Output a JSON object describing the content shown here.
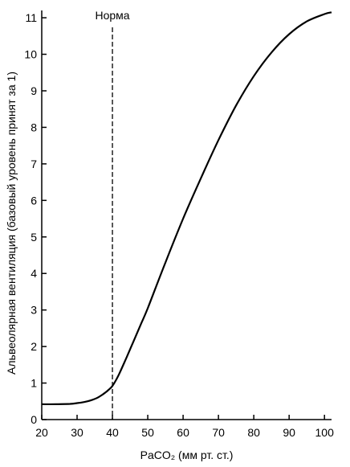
{
  "chart_data": {
    "type": "line",
    "xlabel": "PaCO₂ (мм рт. ст.)",
    "ylabel": "Альвеолярная вентиляция (базовый уровень принят за 1)",
    "xlim": [
      20,
      102
    ],
    "ylim": [
      0,
      11.2
    ],
    "xticks": [
      20,
      30,
      40,
      50,
      60,
      70,
      80,
      90,
      100
    ],
    "yticks": [
      0,
      1,
      2,
      3,
      4,
      5,
      6,
      7,
      8,
      9,
      10,
      11
    ],
    "grid": false,
    "series": [
      {
        "x": [
          20,
          24,
          28,
          30,
          32,
          34,
          36,
          38,
          39,
          40,
          41,
          42,
          44,
          46,
          48,
          50,
          55,
          60,
          65,
          70,
          75,
          80,
          85,
          90,
          95,
          100,
          102
        ],
        "y": [
          0.42,
          0.42,
          0.43,
          0.45,
          0.48,
          0.53,
          0.61,
          0.74,
          0.82,
          0.92,
          1.08,
          1.27,
          1.7,
          2.15,
          2.6,
          3.05,
          4.3,
          5.5,
          6.6,
          7.65,
          8.6,
          9.4,
          10.05,
          10.55,
          10.9,
          11.1,
          11.15
        ]
      }
    ],
    "annotations": [
      {
        "text": "Норма",
        "x": 40,
        "line": "vertical-dashed"
      }
    ]
  }
}
